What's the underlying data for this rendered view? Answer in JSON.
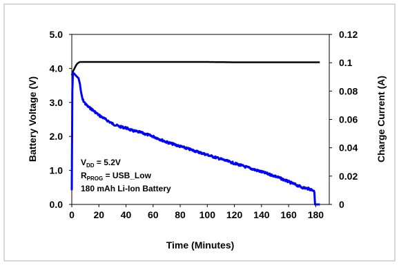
{
  "chart_data": {
    "type": "line",
    "xlabel": "Time (Minutes)",
    "ylabel_left": "Battery Voltage (V)",
    "ylabel_right": "Charge Current (A)",
    "xlim": [
      0,
      190
    ],
    "xticks": [
      0,
      20,
      40,
      60,
      80,
      100,
      120,
      140,
      160,
      180
    ],
    "ylim_left": [
      0,
      5
    ],
    "yticks_left": [
      "0.0",
      "1.0",
      "2.0",
      "3.0",
      "4.0",
      "5.0"
    ],
    "ylim_right": [
      0,
      0.12
    ],
    "yticks_right": [
      "0",
      "0.02",
      "0.04",
      "0.06",
      "0.08",
      "0.1",
      "0.12"
    ],
    "grid": false,
    "series": [
      {
        "axis": "left",
        "color": "#000000",
        "x": [
          0,
          0.5,
          1,
          2,
          3,
          4,
          5,
          6,
          8,
          10,
          20,
          40,
          60,
          80,
          100,
          120,
          140,
          160,
          178,
          180,
          183
        ],
        "y": [
          3.8,
          3.86,
          3.92,
          4.0,
          4.08,
          4.14,
          4.17,
          4.19,
          4.19,
          4.19,
          4.19,
          4.19,
          4.19,
          4.19,
          4.19,
          4.18,
          4.18,
          4.18,
          4.18,
          4.18,
          4.18
        ]
      },
      {
        "axis": "right",
        "color": "#0000ff",
        "x": [
          0,
          0.4,
          0.8,
          1,
          2,
          3,
          4,
          5,
          6,
          7,
          8,
          10,
          12,
          15,
          20,
          25,
          30,
          35,
          40,
          45,
          50,
          60,
          70,
          80,
          90,
          100,
          110,
          120,
          130,
          140,
          150,
          160,
          170,
          175,
          178,
          179,
          179.5,
          183
        ],
        "y": [
          0.01,
          0.08,
          0.092,
          0.093,
          0.092,
          0.091,
          0.09,
          0.089,
          0.085,
          0.078,
          0.074,
          0.071,
          0.069,
          0.067,
          0.063,
          0.06,
          0.057,
          0.055,
          0.054,
          0.052,
          0.051,
          0.048,
          0.044,
          0.041,
          0.038,
          0.035,
          0.032,
          0.029,
          0.026,
          0.023,
          0.02,
          0.016,
          0.012,
          0.011,
          0.01,
          0.009,
          0.0,
          0.0
        ]
      }
    ],
    "annotations": [
      {
        "text": "V",
        "sub": "DD",
        "rest": " = 5.2V"
      },
      {
        "text": "R",
        "sub": "PROG",
        "rest": " = USB_Low"
      },
      {
        "text": "180 mAh Li-Ion Battery",
        "sub": "",
        "rest": ""
      }
    ]
  }
}
